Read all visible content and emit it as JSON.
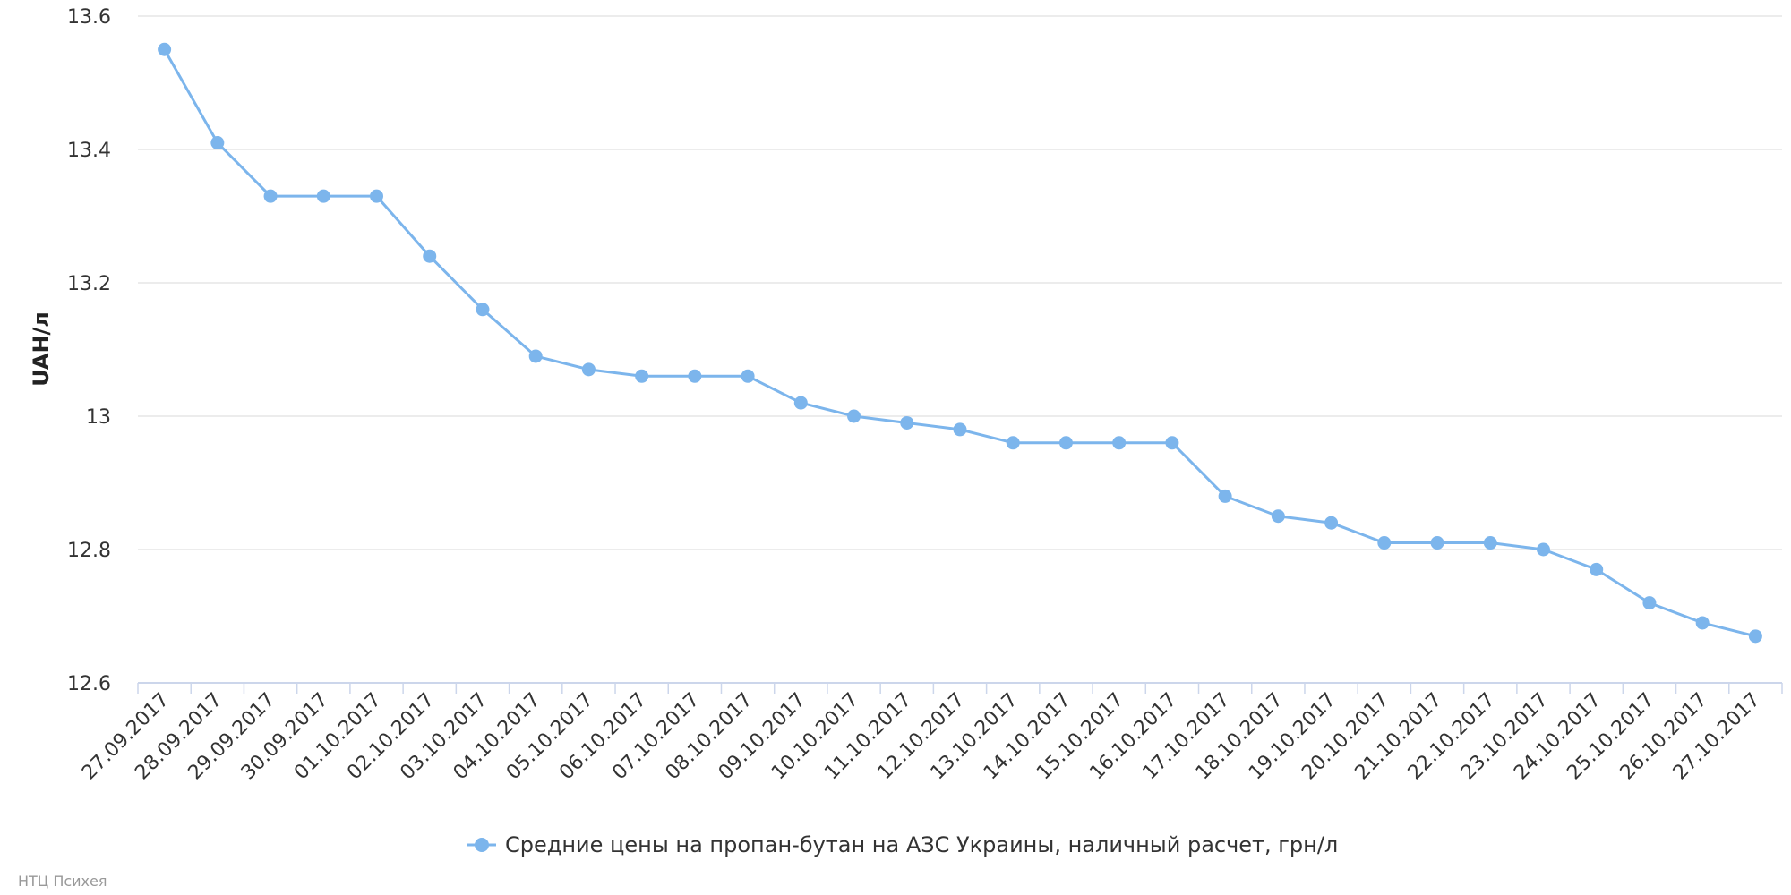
{
  "chart_data": {
    "type": "line",
    "title": "",
    "xlabel": "",
    "ylabel": "UAH/л",
    "ylim": [
      12.6,
      13.6
    ],
    "yticks": [
      "13.6",
      "13.4",
      "13.2",
      "13",
      "12.8",
      "12.6"
    ],
    "grid": true,
    "legend_position": "bottom-center",
    "categories": [
      "27.09.2017",
      "28.09.2017",
      "29.09.2017",
      "30.09.2017",
      "01.10.2017",
      "02.10.2017",
      "03.10.2017",
      "04.10.2017",
      "05.10.2017",
      "06.10.2017",
      "07.10.2017",
      "08.10.2017",
      "09.10.2017",
      "10.10.2017",
      "11.10.2017",
      "12.10.2017",
      "13.10.2017",
      "14.10.2017",
      "15.10.2017",
      "16.10.2017",
      "17.10.2017",
      "18.10.2017",
      "19.10.2017",
      "20.10.2017",
      "21.10.2017",
      "22.10.2017",
      "23.10.2017",
      "24.10.2017",
      "25.10.2017",
      "26.10.2017",
      "27.10.2017"
    ],
    "series": [
      {
        "name": "Средние цены на пропан-бутан на АЗС Украины, наличный расчет, грн/л",
        "color": "#7cb5ec",
        "values": [
          13.55,
          13.41,
          13.33,
          13.33,
          13.33,
          13.24,
          13.16,
          13.09,
          13.07,
          13.06,
          13.06,
          13.06,
          13.02,
          13.0,
          12.99,
          12.98,
          12.96,
          12.96,
          12.96,
          12.96,
          12.88,
          12.85,
          12.84,
          12.81,
          12.81,
          12.81,
          12.8,
          12.77,
          12.72,
          12.69,
          12.67
        ]
      }
    ]
  },
  "credit": "НТЦ Психея",
  "colors": {
    "series": "#7cb5ec",
    "grid": "#e6e6e6",
    "axis": "#ccd6eb",
    "text": "#333333"
  }
}
